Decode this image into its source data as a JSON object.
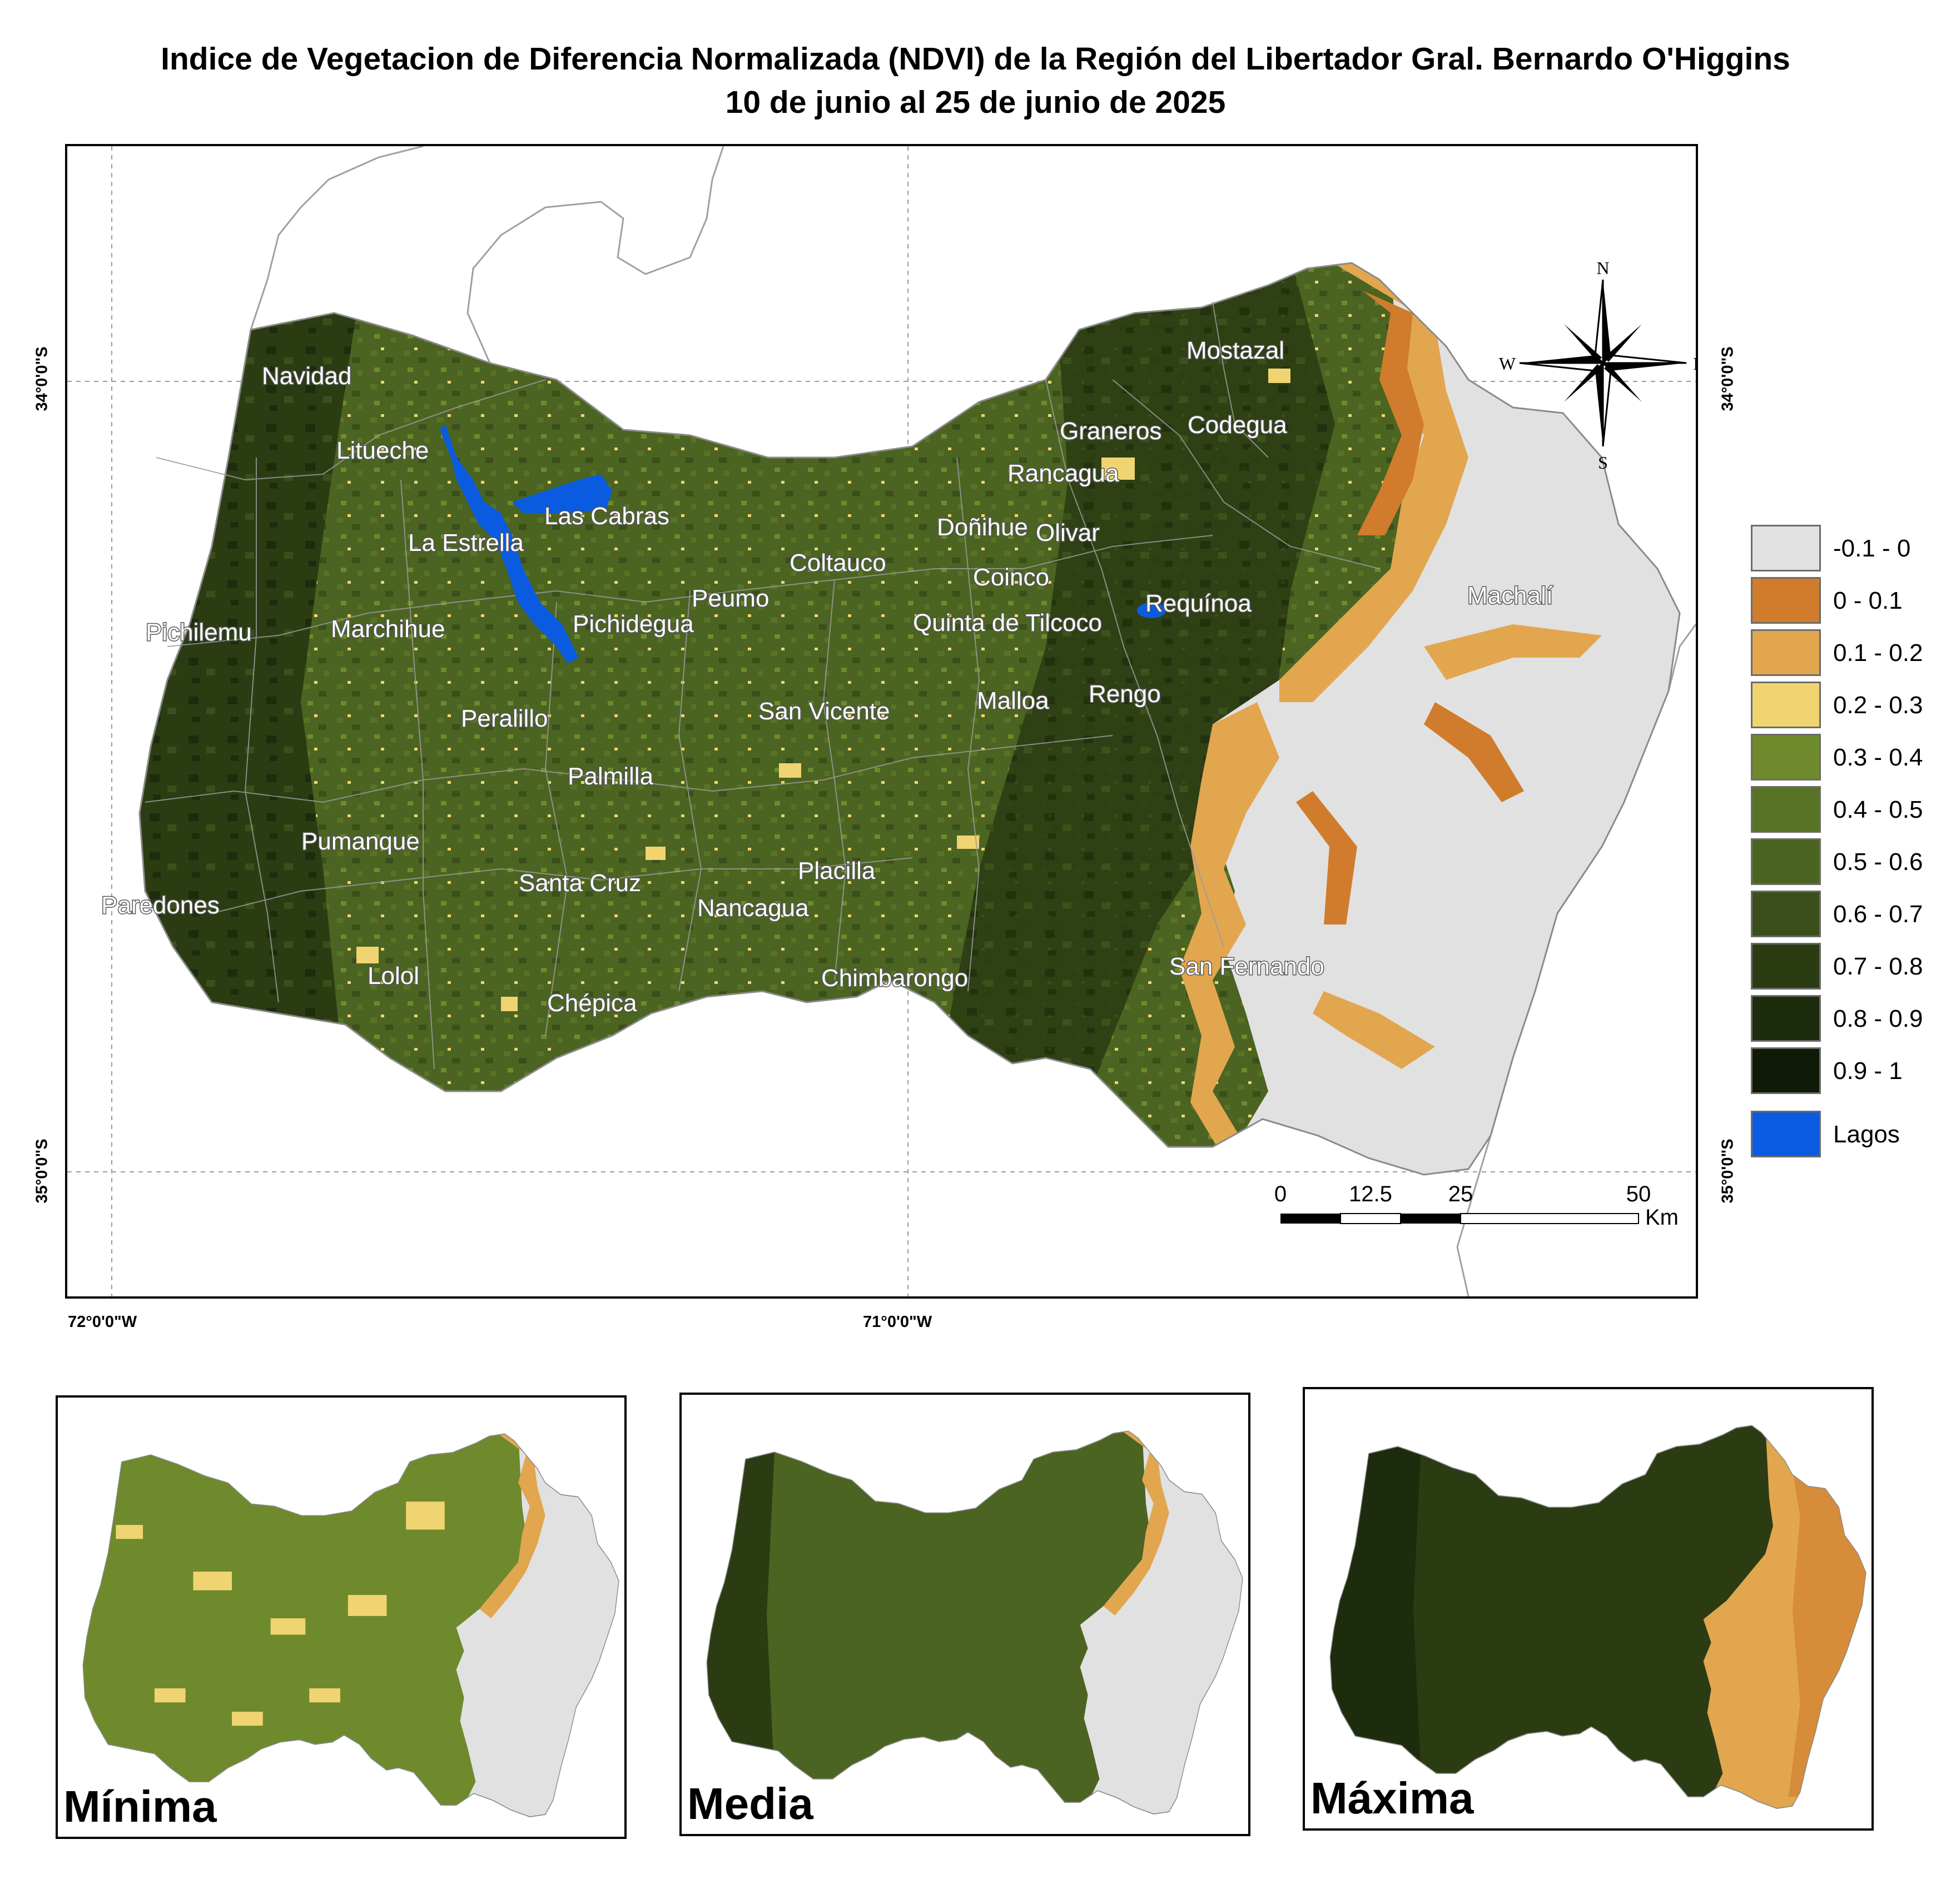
{
  "title": {
    "line1": "Indice de Vegetacion de Diferencia Normalizada (NDVI) de la Región del Libertador Gral. Bernardo O'Higgins",
    "line2": "10 de junio al 25 de junio de 2025"
  },
  "coordinates": {
    "lat_top": "34°0'0\"S",
    "lat_bottom": "35°0'0\"S",
    "lon_left": "72°0'0\"W",
    "lon_right": "71°0'0\"W"
  },
  "north_arrow": {
    "n": "N",
    "s": "S",
    "e": "E",
    "w": "W"
  },
  "communes": [
    "Navidad",
    "Litueche",
    "La Estrella",
    "Las Cabras",
    "Pichilemu",
    "Marchihue",
    "Pichidegua",
    "Peumo",
    "Coltauco",
    "Doñihue",
    "Olivar",
    "Coinco",
    "Rancagua",
    "Graneros",
    "Codegua",
    "Mostazal",
    "Machalí",
    "Requínoa",
    "Quinta de Tilcoco",
    "San Vicente",
    "Malloa",
    "Rengo",
    "Peralillo",
    "Palmilla",
    "Pumanque",
    "Paredones",
    "Santa Cruz",
    "Placilla",
    "Nancagua",
    "Lolol",
    "Chépica",
    "Chimbarongo",
    "San Fernando"
  ],
  "legend": [
    {
      "label": "-0.1 - 0",
      "color": "#e1e1e1"
    },
    {
      "label": "0 - 0.1",
      "color": "#d07c2c"
    },
    {
      "label": "0.1 - 0.2",
      "color": "#e2a64f"
    },
    {
      "label": "0.2 - 0.3",
      "color": "#f0d471"
    },
    {
      "label": "0.3 - 0.4",
      "color": "#6e8a2c"
    },
    {
      "label": "0.4 - 0.5",
      "color": "#587325"
    },
    {
      "label": "0.5 - 0.6",
      "color": "#4b6421"
    },
    {
      "label": "0.6 - 0.7",
      "color": "#3a4f1a"
    },
    {
      "label": "0.7 - 0.8",
      "color": "#2b3c13"
    },
    {
      "label": "0.8 - 0.9",
      "color": "#1d2c0d"
    },
    {
      "label": "0.9 - 1",
      "color": "#0f1a07"
    },
    {
      "label": "Lagos",
      "color": "#0b5be0"
    }
  ],
  "scale_bar": {
    "ticks": [
      "0",
      "12.5",
      "25",
      "50"
    ],
    "unit": "Km"
  },
  "insets": [
    {
      "label": "Mínima"
    },
    {
      "label": "Media"
    },
    {
      "label": "Máxima"
    }
  ]
}
